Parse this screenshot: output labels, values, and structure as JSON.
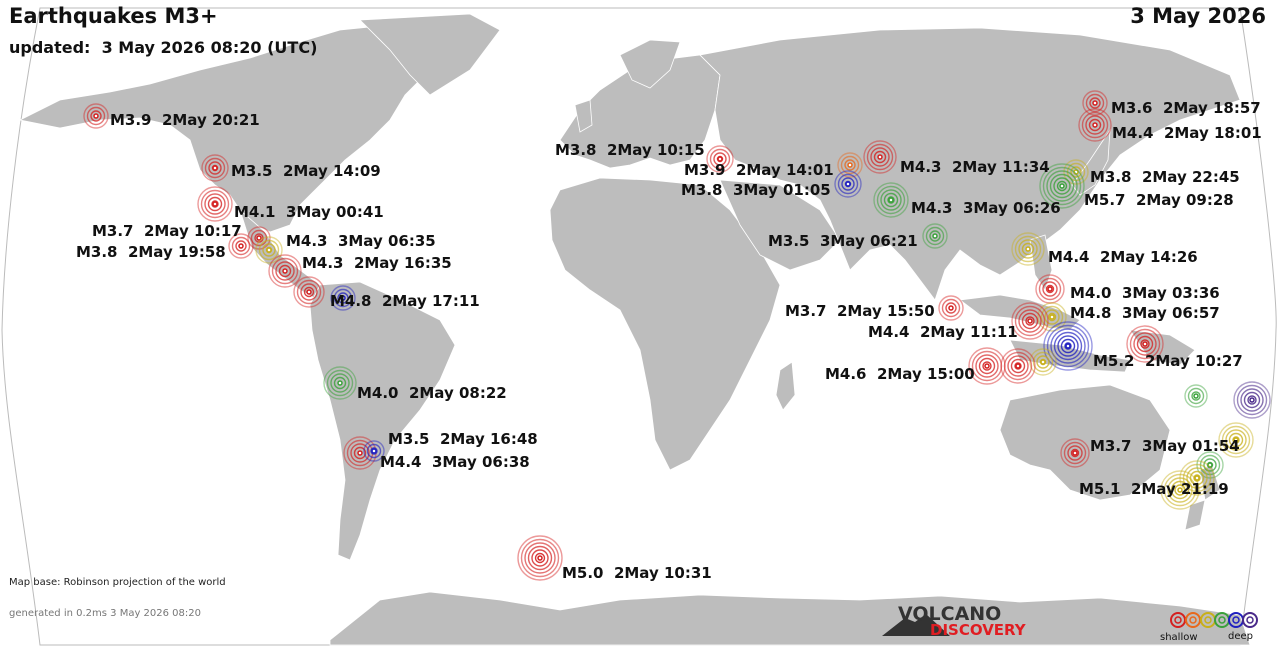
{
  "header": {
    "title": "Earthquakes M3+",
    "updated": "updated:  3 May 2026 08:20 (UTC)",
    "date": "3 May 2026"
  },
  "footer": {
    "map_base": "Map base: Robinson projection of the world",
    "generated": "generated in 0.2ms  3 May 2026 08:20",
    "logo_top": "VOLCANO",
    "logo_bottom": "DISCOVERY"
  },
  "legend": {
    "shallow": "shallow",
    "deep": "deep",
    "colors": [
      "#d42020",
      "#e8681c",
      "#c8b01a",
      "#3aa13a",
      "#2020c0",
      "#4a2a8a"
    ]
  },
  "depth_colors": {
    "red": "#d42020",
    "orange": "#e8681c",
    "yellow": "#c8b01a",
    "green": "#3aa13a",
    "blue": "#2020c0",
    "purple": "#4a2a8a"
  },
  "labels": [
    "M3.9  2May 20:21",
    "M3.5  2May 14:09",
    "M4.1  3May 00:41",
    "M3.7  2May 10:17",
    "M4.3  3May 06:35",
    "M3.8  2May 19:58",
    "M4.3  2May 16:35",
    "M4.8  2May 17:11",
    "M4.0  2May 08:22",
    "M3.5  2May 16:48",
    "M4.4  3May 06:38",
    "M5.0  2May 10:31",
    "M3.8  2May 10:15",
    "M3.9  2May 14:01",
    "M3.8  3May 01:05",
    "M4.3  2May 11:34",
    "M4.3  3May 06:26",
    "M3.5  3May 06:21",
    "M3.6  2May 18:57",
    "M4.4  2May 18:01",
    "M3.8  2May 22:45",
    "M5.7  2May 09:28",
    "M4.4  2May 14:26",
    "M4.0  3May 03:36",
    "M4.8  3May 06:57",
    "M3.7  2May 15:50",
    "M4.4  2May 11:11",
    "M5.2  2May 10:27",
    "M4.6  2May 15:00",
    "M3.7  3May 01:54",
    "M5.1  2May 21:19"
  ]
}
